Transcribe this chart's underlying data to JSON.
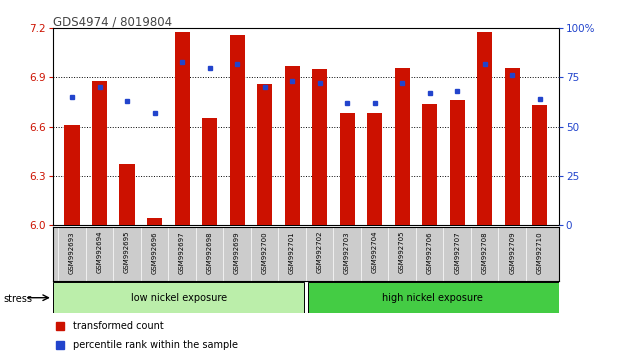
{
  "title": "GDS4974 / 8019804",
  "samples": [
    "GSM992693",
    "GSM992694",
    "GSM992695",
    "GSM992696",
    "GSM992697",
    "GSM992698",
    "GSM992699",
    "GSM992700",
    "GSM992701",
    "GSM992702",
    "GSM992703",
    "GSM992704",
    "GSM992705",
    "GSM992706",
    "GSM992707",
    "GSM992708",
    "GSM992709",
    "GSM992710"
  ],
  "red_values": [
    6.61,
    6.88,
    6.37,
    6.04,
    7.18,
    6.65,
    7.16,
    6.86,
    6.97,
    6.95,
    6.68,
    6.68,
    6.96,
    6.74,
    6.76,
    7.18,
    6.96,
    6.73
  ],
  "blue_values": [
    65,
    70,
    63,
    57,
    83,
    80,
    82,
    70,
    73,
    72,
    62,
    62,
    72,
    67,
    68,
    82,
    76,
    64
  ],
  "ylim_left": [
    6.0,
    7.2
  ],
  "ylim_right": [
    0,
    100
  ],
  "yticks_left": [
    6.0,
    6.3,
    6.6,
    6.9,
    7.2
  ],
  "yticks_right": [
    0,
    25,
    50,
    75,
    100
  ],
  "ytick_labels_right": [
    "0",
    "25",
    "50",
    "75",
    "100%"
  ],
  "group1_label": "low nickel exposure",
  "group2_label": "high nickel exposure",
  "group1_count": 9,
  "total_count": 18,
  "stress_label": "stress",
  "legend_red": "transformed count",
  "legend_blue": "percentile rank within the sample",
  "bar_color": "#cc1100",
  "blue_color": "#2244cc",
  "group1_color": "#bbeeaa",
  "group2_color": "#44cc44",
  "bg_color": "#cccccc",
  "title_color": "#444444",
  "left_axis_color": "#cc1100",
  "right_axis_color": "#2244cc",
  "bar_width": 0.55,
  "base_value": 6.0
}
